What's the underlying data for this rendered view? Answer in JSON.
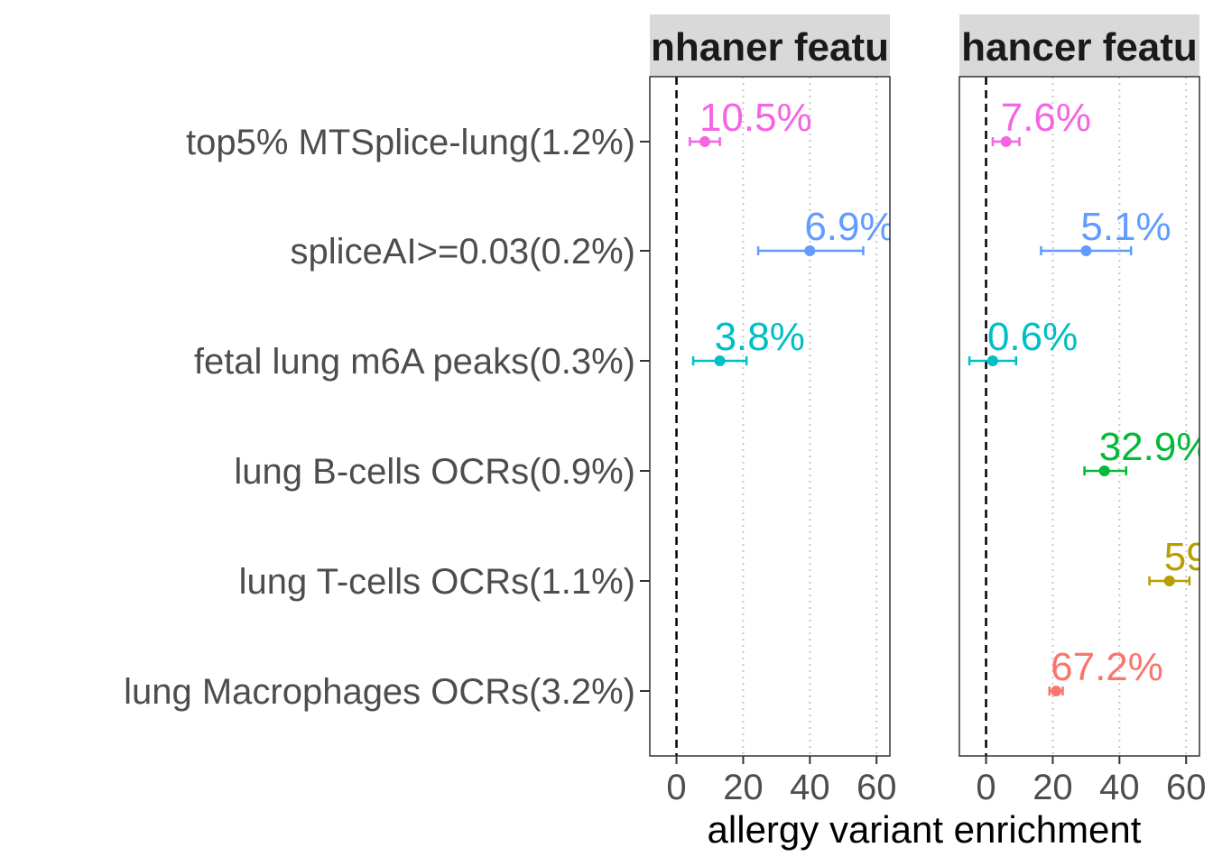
{
  "chart_data": {
    "type": "scatter",
    "xlabel": "allergy variant enrichment",
    "xlim": [
      -8,
      64
    ],
    "xticks": [
      0,
      20,
      40,
      60
    ],
    "reference_line_x": 0,
    "grid": "dotted vertical at major ticks",
    "categories": [
      "top5% MTSplice-lung(1.2%)",
      "spliceAI>=0.03(0.2%)",
      "fetal lung m6A peaks(0.3%)",
      "lung B-cells OCRs(0.9%)",
      "lung T-cells OCRs(1.1%)",
      "lung Macrophages OCRs(3.2%)"
    ],
    "colors": {
      "top5% MTSplice-lung(1.2%)": "#F564E3",
      "spliceAI>=0.03(0.2%)": "#619CFF",
      "fetal lung m6A peaks(0.3%)": "#00BFC4",
      "lung B-cells OCRs(0.9%)": "#00BA38",
      "lung T-cells OCRs(1.1%)": "#B79F00",
      "lung Macrophages OCRs(3.2%)": "#F8766D"
    },
    "panels": [
      {
        "title": "nhaner featu",
        "points": [
          {
            "category": "top5% MTSplice-lung(1.2%)",
            "x": 8.5,
            "lo": 4,
            "hi": 13,
            "label": "10.5%"
          },
          {
            "category": "spliceAI>=0.03(0.2%)",
            "x": 40,
            "lo": 24.5,
            "hi": 56,
            "label": "6.9%"
          },
          {
            "category": "fetal lung m6A peaks(0.3%)",
            "x": 13,
            "lo": 5,
            "hi": 21,
            "label": "3.8%"
          }
        ]
      },
      {
        "title": "hancer featu",
        "points": [
          {
            "category": "top5% MTSplice-lung(1.2%)",
            "x": 6,
            "lo": 2,
            "hi": 10,
            "label": "7.6%"
          },
          {
            "category": "spliceAI>=0.03(0.2%)",
            "x": 30,
            "lo": 16.5,
            "hi": 43.5,
            "label": "5.1%"
          },
          {
            "category": "fetal lung m6A peaks(0.3%)",
            "x": 2,
            "lo": -5,
            "hi": 9,
            "label": "0.6%"
          },
          {
            "category": "lung B-cells OCRs(0.9%)",
            "x": 35.5,
            "lo": 29.5,
            "hi": 42,
            "label": "32.9%"
          },
          {
            "category": "lung T-cells OCRs(1.1%)",
            "x": 55,
            "lo": 49,
            "hi": 61,
            "label": "59"
          },
          {
            "category": "lung Macrophages OCRs(3.2%)",
            "x": 21,
            "lo": 19,
            "hi": 23,
            "label": "67.2%"
          }
        ]
      }
    ]
  }
}
